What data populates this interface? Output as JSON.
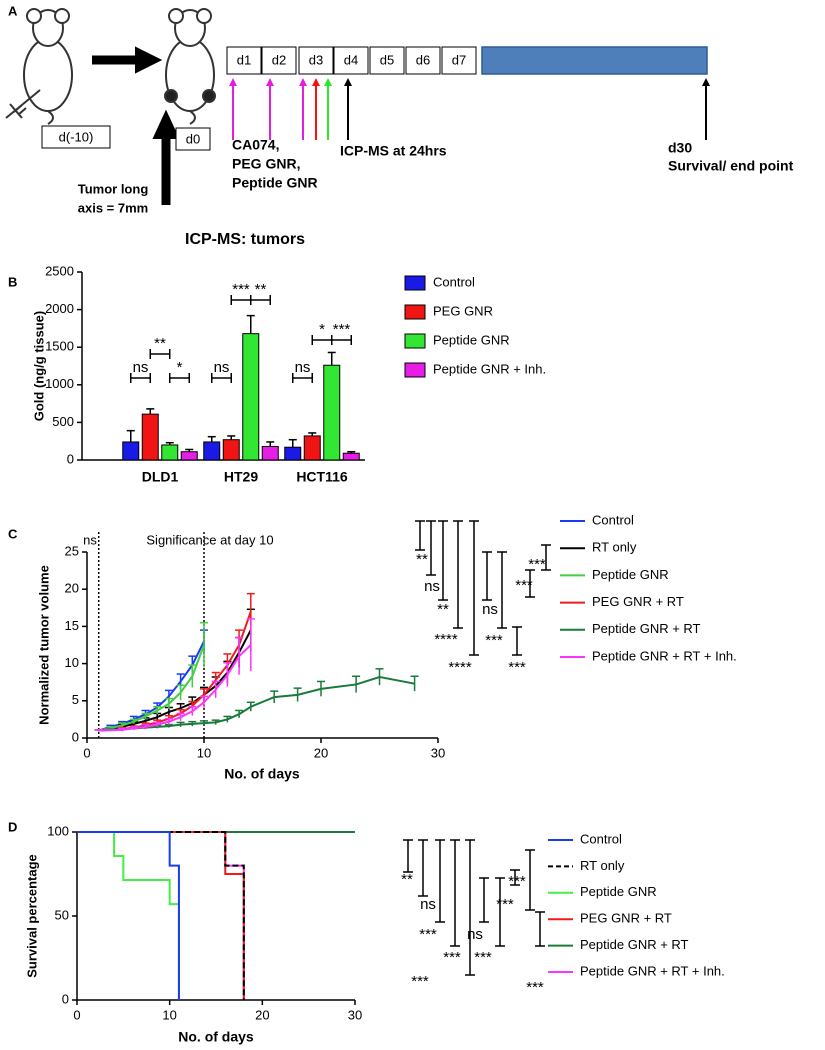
{
  "diagram": {
    "label": "A",
    "before_box": "d(-10)",
    "start_box": "d0",
    "tumor_note": [
      "Tumor long",
      "axis = 7mm"
    ],
    "days": [
      "d1",
      "d2",
      "d3",
      "d4",
      "d5",
      "d6",
      "d7"
    ],
    "injections": [
      {
        "text": "CA074,",
        "color": "#e31ee3"
      },
      {
        "text": "PEG GNR,",
        "color": "#ff1010"
      },
      {
        "text": "Peptide GNR",
        "color": "#2ee62e"
      }
    ],
    "measurement": "ICP-MS at 24hrs",
    "end_day": "d30",
    "end_note": "Survival/ end point"
  },
  "chart_data": [
    {
      "label": "B",
      "type": "bar",
      "title": "ICP-MS: tumors",
      "y_label": "Gold (ng/g tissue)",
      "categories": [
        "DLD1",
        "HT29",
        "HCT116"
      ],
      "series": [
        {
          "name": "Control",
          "color": "#1a1ae6",
          "values": [
            240,
            240,
            170
          ],
          "errors": [
            150,
            70,
            100
          ]
        },
        {
          "name": "PEG GNR",
          "color": "#f01414",
          "values": [
            610,
            270,
            320
          ],
          "errors": [
            70,
            50,
            40
          ]
        },
        {
          "name": "Peptide GNR",
          "color": "#33e633",
          "values": [
            200,
            1680,
            1260
          ],
          "errors": [
            30,
            240,
            170
          ]
        },
        {
          "name": "Peptide GNR + Inh.",
          "color": "#e61ee6",
          "values": [
            110,
            180,
            90
          ],
          "errors": [
            30,
            60,
            20
          ]
        }
      ],
      "ylim": [
        0,
        2500
      ],
      "yticks": [
        0,
        500,
        1000,
        1500,
        2000,
        2500
      ],
      "significance": [
        "ns",
        "**",
        "*",
        "ns",
        "***",
        "**",
        "ns",
        "*",
        "***"
      ]
    },
    {
      "label": "C",
      "type": "line",
      "x_label": "No. of days",
      "y_label": "Normalized tumor volume",
      "xlim": [
        0,
        30
      ],
      "xticks": [
        0,
        10,
        20,
        30
      ],
      "ylim": [
        0,
        25
      ],
      "yticks": [
        0,
        5,
        10,
        15,
        20,
        25
      ],
      "vlines": [
        1,
        10
      ],
      "vline_labels": [
        "ns",
        "Significance at day 10"
      ],
      "series": [
        {
          "name": "Control",
          "color": "#1a3cf0",
          "x": [
            1,
            2,
            3,
            4,
            5,
            6,
            7,
            8,
            9,
            10
          ],
          "values": [
            1,
            1.5,
            1.9,
            2.5,
            3.2,
            4.1,
            5.6,
            7.6,
            9.8,
            13
          ],
          "errors": [
            0.1,
            0.2,
            0.3,
            0.4,
            0.5,
            0.6,
            0.8,
            1,
            1.2,
            1.5
          ]
        },
        {
          "name": "RT only",
          "color": "#000000",
          "x": [
            1,
            3,
            4,
            5,
            6,
            7,
            8,
            9,
            10,
            11,
            12,
            13,
            14
          ],
          "values": [
            1,
            1.5,
            1.9,
            2.3,
            2.8,
            3.5,
            4,
            4.7,
            5.8,
            7,
            8.8,
            11.5,
            14.5
          ],
          "errors": [
            0.1,
            0.3,
            0.3,
            0.4,
            0.5,
            0.6,
            0.6,
            0.8,
            1,
            1.2,
            1.5,
            2,
            2.8
          ]
        },
        {
          "name": "Peptide GNR",
          "color": "#44cc44",
          "x": [
            1,
            2,
            3,
            4,
            5,
            6,
            7,
            8,
            9,
            10
          ],
          "values": [
            1,
            1.3,
            1.7,
            2.2,
            2.9,
            3.7,
            4.6,
            6.1,
            8.3,
            12.5
          ],
          "errors": [
            0.1,
            0.2,
            0.3,
            0.3,
            0.4,
            0.5,
            0.7,
            1,
            1.5,
            3
          ]
        },
        {
          "name": "PEG GNR + RT",
          "color": "#ee1c1c",
          "x": [
            1,
            3,
            4,
            5,
            6,
            7,
            8,
            9,
            10,
            11,
            12,
            13,
            14
          ],
          "values": [
            1,
            1.2,
            1.4,
            1.7,
            2.1,
            2.6,
            3.3,
            4.3,
            5.8,
            7.8,
            9.8,
            12.5,
            17
          ],
          "errors": [
            0.1,
            0.2,
            0.2,
            0.3,
            0.3,
            0.4,
            0.5,
            0.6,
            0.8,
            1,
            1.5,
            2,
            2.4
          ]
        },
        {
          "name": "Peptide GNR + RT",
          "color": "#1a7a3a",
          "x": [
            1,
            2,
            3,
            4,
            5,
            6,
            7,
            8,
            9,
            10,
            11,
            12,
            13,
            14,
            16,
            18,
            20,
            23,
            25,
            28
          ],
          "values": [
            1,
            1.1,
            1.2,
            1.3,
            1.4,
            1.5,
            1.6,
            1.8,
            1.9,
            2,
            2.1,
            2.5,
            3.2,
            4.2,
            5.5,
            5.8,
            6.6,
            7.2,
            8.2,
            7.3
          ],
          "errors": [
            0.1,
            0.1,
            0.1,
            0.2,
            0.2,
            0.2,
            0.2,
            0.3,
            0.3,
            0.3,
            0.3,
            0.4,
            0.5,
            0.6,
            0.8,
            0.9,
            1,
            1.1,
            1.1,
            1
          ]
        },
        {
          "name": "Peptide GNR + RT + Inh.",
          "color": "#ff33ff",
          "x": [
            1,
            3,
            4,
            5,
            6,
            7,
            8,
            9,
            10,
            11,
            12,
            13,
            14
          ],
          "values": [
            1,
            1.1,
            1.3,
            1.5,
            1.8,
            2.2,
            2.8,
            3.6,
            4.8,
            6.5,
            8.5,
            11,
            12.5
          ],
          "errors": [
            0.1,
            0.2,
            0.2,
            0.3,
            0.3,
            0.4,
            0.5,
            0.6,
            0.8,
            1.1,
            1.6,
            2.5,
            3.5
          ]
        }
      ],
      "significance": [
        "**",
        "ns",
        "**",
        "****",
        "****",
        "ns",
        "***",
        "***",
        "***",
        "***"
      ]
    },
    {
      "label": "D",
      "type": "step",
      "x_label": "No. of days",
      "y_label": "Survival percentage",
      "xlim": [
        0,
        30
      ],
      "xticks": [
        0,
        10,
        20,
        30
      ],
      "ylim": [
        0,
        100
      ],
      "yticks": [
        0,
        50,
        100
      ],
      "series": [
        {
          "name": "Control",
          "color": "#1a3cf0",
          "x": [
            0,
            10,
            11
          ],
          "values": [
            100,
            80,
            0
          ]
        },
        {
          "name": "RT only",
          "color": "#000000",
          "dashed": true,
          "x": [
            0,
            16,
            18
          ],
          "values": [
            100,
            80,
            0
          ]
        },
        {
          "name": "Peptide GNR",
          "color": "#44ee44",
          "x": [
            0,
            4,
            5,
            10,
            11
          ],
          "values": [
            100,
            85.7,
            71.4,
            57.1,
            0
          ]
        },
        {
          "name": "PEG GNR + RT",
          "color": "#ee1c1c",
          "x": [
            0,
            16,
            18
          ],
          "values": [
            100,
            75,
            0
          ]
        },
        {
          "name": "Peptide GNR + RT",
          "color": "#1a7a3a",
          "x": [
            0,
            30
          ],
          "values": [
            100,
            100
          ]
        },
        {
          "name": "Peptide GNR + RT + Inh.",
          "color": "#ff33ff",
          "x": [
            0,
            16,
            18
          ],
          "values": [
            100,
            80,
            0
          ]
        }
      ],
      "significance": [
        "**",
        "ns",
        "***",
        "***",
        "***",
        "ns",
        "***",
        "***",
        "***",
        "***"
      ]
    }
  ]
}
